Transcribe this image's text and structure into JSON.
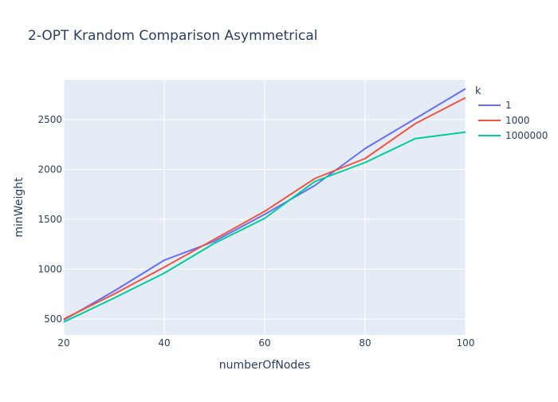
{
  "chart_data": {
    "type": "line",
    "title": "2-OPT Krandom Comparison Asymmetrical",
    "xlabel": "numberOfNodes",
    "ylabel": "minWeight",
    "xlim": [
      20,
      100
    ],
    "ylim": [
      340,
      2900
    ],
    "xticks": [
      20,
      40,
      60,
      80,
      100
    ],
    "yticks": [
      500,
      1000,
      1500,
      2000,
      2500
    ],
    "grid": true,
    "legend_title": "k",
    "legend_position": "right",
    "series": [
      {
        "name": "1",
        "color": "#636efa",
        "x": [
          20,
          30,
          40,
          50,
          60,
          70,
          80,
          90,
          100
        ],
        "y": [
          490,
          780,
          1090,
          1280,
          1550,
          1840,
          2210,
          2510,
          2810
        ]
      },
      {
        "name": "1000",
        "color": "#ef553b",
        "x": [
          20,
          30,
          40,
          50,
          60,
          70,
          80,
          90,
          100
        ],
        "y": [
          500,
          750,
          1020,
          1300,
          1580,
          1910,
          2110,
          2460,
          2720
        ]
      },
      {
        "name": "1000000",
        "color": "#00cc96",
        "x": [
          20,
          30,
          40,
          50,
          60,
          70,
          80,
          90,
          100
        ],
        "y": [
          470,
          710,
          960,
          1260,
          1510,
          1880,
          2070,
          2310,
          2375
        ]
      }
    ]
  }
}
